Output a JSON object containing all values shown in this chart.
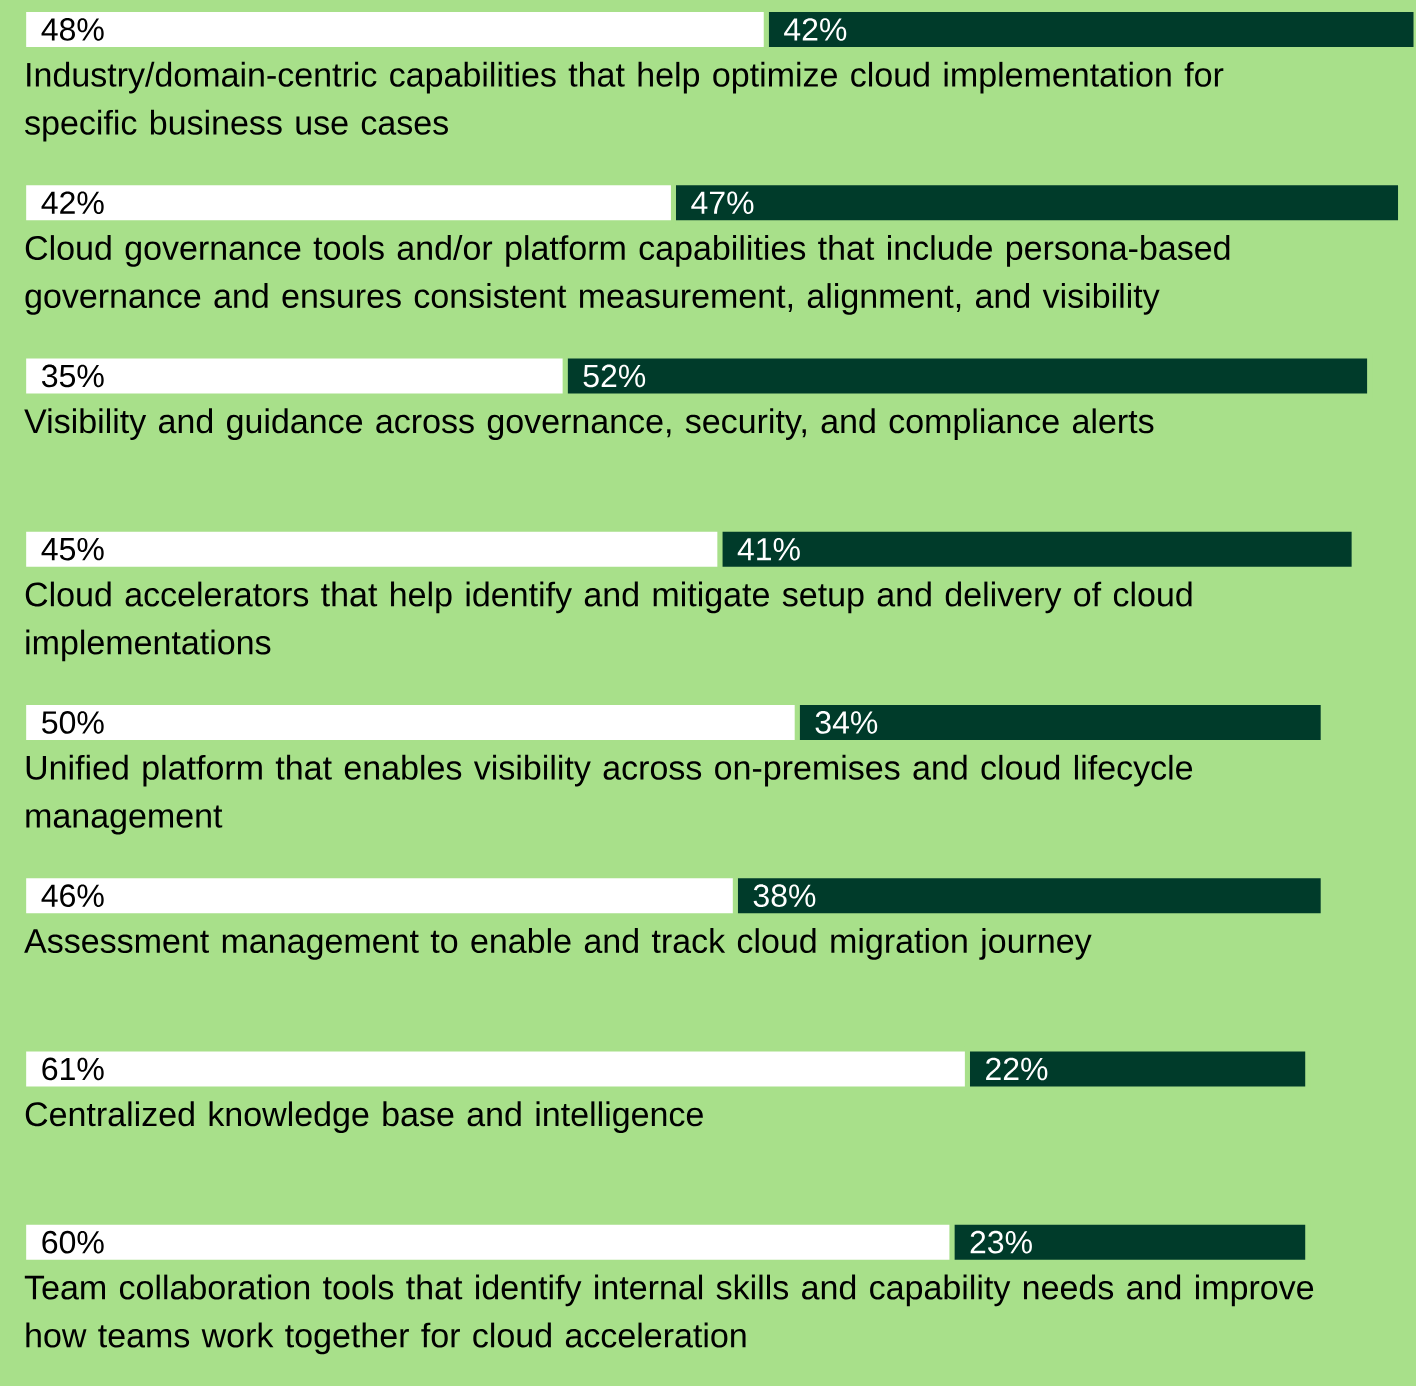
{
  "chart_data": {
    "type": "bar",
    "orientation": "horizontal",
    "stacked": true,
    "categories": [
      "Industry/domain-centric capabilities that help optimize cloud implementation for specific business use cases",
      "Cloud governance tools and/or platform capabilities that include persona-based governance and ensures consistent measurement, alignment, and visibility",
      "Visibility and guidance across governance, security, and compliance alerts",
      "Cloud accelerators that help identify and mitigate setup and delivery of cloud implementations",
      "Unified platform that enables visibility across on-premises and cloud lifecycle management",
      "Assessment management to enable and track cloud migration journey",
      "Centralized knowledge base and intelligence",
      "Team collaboration tools that identify internal skills and capability needs and improve how teams work together for cloud acceleration"
    ],
    "series": [
      {
        "color": "#ffffff",
        "values": [
          48,
          42,
          35,
          45,
          50,
          46,
          61,
          60
        ],
        "value_labels": [
          "48%",
          "42%",
          "35%",
          "45%",
          "50%",
          "46%",
          "61%",
          "60%"
        ]
      },
      {
        "color": "#003b2a",
        "values": [
          42,
          47,
          52,
          41,
          34,
          38,
          22,
          23
        ],
        "value_labels": [
          "42%",
          "47%",
          "52%",
          "41%",
          "34%",
          "38%",
          "22%",
          "23%"
        ]
      }
    ]
  }
}
